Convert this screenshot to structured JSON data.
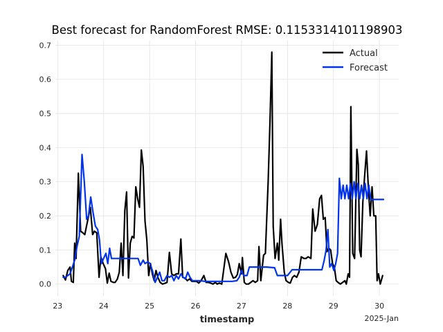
{
  "chart_data": {
    "type": "line",
    "title": "Best forecast for RandomForest RMSE: 0.1153314101198903",
    "xlabel": "timestamp",
    "ylabel": "",
    "x_offset_label": "2025-Jan",
    "xlim": [
      22.95,
      30.42
    ],
    "ylim": [
      -0.035,
      0.715
    ],
    "x_ticks": [
      23,
      24,
      25,
      26,
      27,
      28,
      29,
      30
    ],
    "x_tick_labels": [
      "23",
      "24",
      "25",
      "26",
      "27",
      "28",
      "29",
      "30"
    ],
    "y_ticks": [
      0.0,
      0.1,
      0.2,
      0.3,
      0.4,
      0.5,
      0.6,
      0.7
    ],
    "y_tick_labels": [
      "0.0",
      "0.1",
      "0.2",
      "0.3",
      "0.4",
      "0.5",
      "0.6",
      "0.7"
    ],
    "legend_position": "top-right",
    "grid": true,
    "series": [
      {
        "name": "Actual",
        "color": "#000000",
        "points": [
          [
            23.12,
            0.025
          ],
          [
            23.17,
            0.012
          ],
          [
            23.22,
            0.04
          ],
          [
            23.27,
            0.05
          ],
          [
            23.3,
            0.008
          ],
          [
            23.34,
            0.005
          ],
          [
            23.37,
            0.12
          ],
          [
            23.4,
            0.075
          ],
          [
            23.45,
            0.325
          ],
          [
            23.5,
            0.155
          ],
          [
            23.55,
            0.15
          ],
          [
            23.59,
            0.145
          ],
          [
            23.65,
            0.185
          ],
          [
            23.71,
            0.225
          ],
          [
            23.76,
            0.145
          ],
          [
            23.8,
            0.155
          ],
          [
            23.85,
            0.15
          ],
          [
            23.9,
            0.02
          ],
          [
            23.94,
            0.08
          ],
          [
            23.99,
            0.06
          ],
          [
            24.04,
            0.045
          ],
          [
            24.08,
            0.003
          ],
          [
            24.12,
            0.032
          ],
          [
            24.16,
            0.008
          ],
          [
            24.21,
            0.005
          ],
          [
            24.25,
            0.005
          ],
          [
            24.3,
            0.015
          ],
          [
            24.34,
            0.035
          ],
          [
            24.38,
            0.12
          ],
          [
            24.42,
            0.025
          ],
          [
            24.46,
            0.215
          ],
          [
            24.5,
            0.27
          ],
          [
            24.54,
            0.018
          ],
          [
            24.58,
            0.12
          ],
          [
            24.62,
            0.14
          ],
          [
            24.66,
            0.135
          ],
          [
            24.7,
            0.285
          ],
          [
            24.74,
            0.25
          ],
          [
            24.78,
            0.225
          ],
          [
            24.82,
            0.393
          ],
          [
            24.86,
            0.345
          ],
          [
            24.9,
            0.185
          ],
          [
            24.94,
            0.13
          ],
          [
            24.98,
            0.025
          ],
          [
            25.02,
            0.06
          ],
          [
            25.06,
            0.03
          ],
          [
            25.1,
            0.01
          ],
          [
            25.14,
            0.04
          ],
          [
            25.18,
            0.02
          ],
          [
            25.23,
            0.005
          ],
          [
            25.28,
            0.0
          ],
          [
            25.33,
            0.002
          ],
          [
            25.38,
            0.005
          ],
          [
            25.43,
            0.093
          ],
          [
            25.48,
            0.03
          ],
          [
            25.53,
            0.025
          ],
          [
            25.58,
            0.03
          ],
          [
            25.63,
            0.03
          ],
          [
            25.68,
            0.132
          ],
          [
            25.72,
            0.02
          ],
          [
            25.77,
            0.018
          ],
          [
            25.82,
            0.01
          ],
          [
            25.87,
            0.015
          ],
          [
            25.92,
            0.008
          ],
          [
            25.97,
            0.008
          ],
          [
            26.02,
            0.008
          ],
          [
            26.07,
            0.003
          ],
          [
            26.12,
            0.01
          ],
          [
            26.18,
            0.025
          ],
          [
            26.23,
            0.005
          ],
          [
            26.28,
            0.005
          ],
          [
            26.33,
            0.003
          ],
          [
            26.38,
            0.0
          ],
          [
            26.43,
            0.005
          ],
          [
            26.47,
            0.0
          ],
          [
            26.52,
            0.003
          ],
          [
            26.57,
            0.0
          ],
          [
            26.62,
            0.05
          ],
          [
            26.66,
            0.09
          ],
          [
            26.72,
            0.065
          ],
          [
            26.77,
            0.035
          ],
          [
            26.82,
            0.018
          ],
          [
            26.87,
            0.02
          ],
          [
            26.91,
            0.028
          ],
          [
            26.95,
            0.06
          ],
          [
            27.0,
            0.03
          ],
          [
            27.02,
            0.078
          ],
          [
            27.06,
            0.005
          ],
          [
            27.1,
            0.0
          ],
          [
            27.15,
            0.0
          ],
          [
            27.2,
            0.005
          ],
          [
            27.25,
            0.01
          ],
          [
            27.3,
            0.005
          ],
          [
            27.35,
            0.01
          ],
          [
            27.38,
            0.11
          ],
          [
            27.42,
            0.01
          ],
          [
            27.48,
            0.085
          ],
          [
            27.52,
            0.09
          ],
          [
            27.58,
            0.3
          ],
          [
            27.62,
            0.48
          ],
          [
            27.66,
            0.68
          ],
          [
            27.69,
            0.17
          ],
          [
            27.73,
            0.075
          ],
          [
            27.78,
            0.12
          ],
          [
            27.81,
            0.07
          ],
          [
            27.85,
            0.19
          ],
          [
            27.88,
            0.12
          ],
          [
            27.93,
            0.035
          ],
          [
            27.97,
            0.01
          ],
          [
            28.02,
            0.005
          ],
          [
            28.06,
            0.003
          ],
          [
            28.11,
            0.02
          ],
          [
            28.15,
            0.025
          ],
          [
            28.2,
            0.02
          ],
          [
            28.25,
            0.035
          ],
          [
            28.3,
            0.08
          ],
          [
            28.36,
            0.075
          ],
          [
            28.4,
            0.075
          ],
          [
            28.45,
            0.08
          ],
          [
            28.51,
            0.075
          ],
          [
            28.55,
            0.22
          ],
          [
            28.6,
            0.155
          ],
          [
            28.65,
            0.175
          ],
          [
            28.7,
            0.25
          ],
          [
            28.74,
            0.26
          ],
          [
            28.78,
            0.19
          ],
          [
            28.82,
            0.195
          ],
          [
            28.86,
            0.095
          ],
          [
            28.9,
            0.105
          ],
          [
            28.94,
            0.1
          ],
          [
            28.98,
            0.06
          ],
          [
            29.02,
            0.05
          ],
          [
            29.06,
            0.01
          ],
          [
            29.1,
            0.005
          ],
          [
            29.15,
            0.0
          ],
          [
            29.2,
            0.005
          ],
          [
            29.25,
            0.01
          ],
          [
            29.28,
            0.0
          ],
          [
            29.32,
            0.03
          ],
          [
            29.35,
            0.02
          ],
          [
            29.38,
            0.52
          ],
          [
            29.42,
            0.09
          ],
          [
            29.46,
            0.075
          ],
          [
            29.51,
            0.395
          ],
          [
            29.54,
            0.35
          ],
          [
            29.57,
            0.1
          ],
          [
            29.6,
            0.08
          ],
          [
            29.64,
            0.24
          ],
          [
            29.68,
            0.32
          ],
          [
            29.72,
            0.39
          ],
          [
            29.76,
            0.28
          ],
          [
            29.8,
            0.2
          ],
          [
            29.84,
            0.285
          ],
          [
            29.88,
            0.2
          ],
          [
            29.92,
            0.2
          ],
          [
            29.95,
            0.01
          ],
          [
            29.98,
            0.03
          ],
          [
            30.02,
            0.0
          ],
          [
            30.07,
            0.025
          ]
        ]
      },
      {
        "name": "Forecast",
        "color": "#0033ee",
        "points": [
          [
            23.12,
            0.02
          ],
          [
            23.17,
            0.02
          ],
          [
            23.22,
            0.025
          ],
          [
            23.27,
            0.03
          ],
          [
            23.32,
            0.05
          ],
          [
            23.37,
            0.07
          ],
          [
            23.42,
            0.11
          ],
          [
            23.47,
            0.14
          ],
          [
            23.53,
            0.38
          ],
          [
            23.58,
            0.3
          ],
          [
            23.63,
            0.19
          ],
          [
            23.67,
            0.2
          ],
          [
            23.72,
            0.255
          ],
          [
            23.77,
            0.21
          ],
          [
            23.82,
            0.17
          ],
          [
            23.87,
            0.16
          ],
          [
            23.91,
            0.13
          ],
          [
            23.95,
            0.06
          ],
          [
            24.0,
            0.075
          ],
          [
            24.05,
            0.09
          ],
          [
            24.09,
            0.06
          ],
          [
            24.13,
            0.105
          ],
          [
            24.17,
            0.075
          ],
          [
            24.25,
            0.075
          ],
          [
            24.5,
            0.075
          ],
          [
            24.6,
            0.075
          ],
          [
            24.75,
            0.075
          ],
          [
            24.8,
            0.055
          ],
          [
            24.86,
            0.07
          ],
          [
            24.9,
            0.06
          ],
          [
            24.96,
            0.065
          ],
          [
            25.01,
            0.06
          ],
          [
            25.06,
            0.04
          ],
          [
            25.12,
            0.005
          ],
          [
            25.17,
            0.02
          ],
          [
            25.22,
            0.035
          ],
          [
            25.27,
            0.01
          ],
          [
            25.32,
            0.01
          ],
          [
            25.38,
            0.025
          ],
          [
            25.43,
            0.02
          ],
          [
            25.48,
            0.025
          ],
          [
            25.53,
            0.01
          ],
          [
            25.58,
            0.025
          ],
          [
            25.63,
            0.015
          ],
          [
            25.68,
            0.03
          ],
          [
            25.73,
            0.02
          ],
          [
            25.78,
            0.015
          ],
          [
            25.83,
            0.035
          ],
          [
            25.88,
            0.02
          ],
          [
            25.93,
            0.01
          ],
          [
            26.0,
            0.01
          ],
          [
            26.05,
            0.01
          ],
          [
            26.1,
            0.01
          ],
          [
            26.2,
            0.008
          ],
          [
            26.4,
            0.008
          ],
          [
            26.6,
            0.008
          ],
          [
            26.8,
            0.008
          ],
          [
            26.9,
            0.01
          ],
          [
            26.95,
            0.02
          ],
          [
            27.0,
            0.04
          ],
          [
            27.05,
            0.025
          ],
          [
            27.12,
            0.025
          ],
          [
            27.17,
            0.05
          ],
          [
            27.4,
            0.05
          ],
          [
            27.55,
            0.05
          ],
          [
            27.72,
            0.048
          ],
          [
            27.78,
            0.025
          ],
          [
            27.85,
            0.025
          ],
          [
            28.0,
            0.025
          ],
          [
            28.1,
            0.042
          ],
          [
            28.2,
            0.042
          ],
          [
            28.4,
            0.042
          ],
          [
            28.6,
            0.042
          ],
          [
            28.75,
            0.042
          ],
          [
            28.8,
            0.07
          ],
          [
            28.84,
            0.1
          ],
          [
            28.88,
            0.16
          ],
          [
            28.92,
            0.05
          ],
          [
            28.96,
            0.06
          ],
          [
            29.01,
            0.04
          ],
          [
            29.05,
            0.06
          ],
          [
            29.09,
            0.09
          ],
          [
            29.13,
            0.31
          ],
          [
            29.17,
            0.25
          ],
          [
            29.21,
            0.29
          ],
          [
            29.25,
            0.25
          ],
          [
            29.29,
            0.29
          ],
          [
            29.33,
            0.25
          ],
          [
            29.37,
            0.295
          ],
          [
            29.41,
            0.25
          ],
          [
            29.45,
            0.3
          ],
          [
            29.49,
            0.25
          ],
          [
            29.53,
            0.295
          ],
          [
            29.57,
            0.25
          ],
          [
            29.61,
            0.29
          ],
          [
            29.65,
            0.25
          ],
          [
            29.69,
            0.295
          ],
          [
            29.73,
            0.25
          ],
          [
            29.77,
            0.29
          ],
          [
            29.81,
            0.248
          ],
          [
            29.9,
            0.248
          ],
          [
            30.0,
            0.248
          ],
          [
            30.09,
            0.248
          ]
        ]
      }
    ]
  }
}
